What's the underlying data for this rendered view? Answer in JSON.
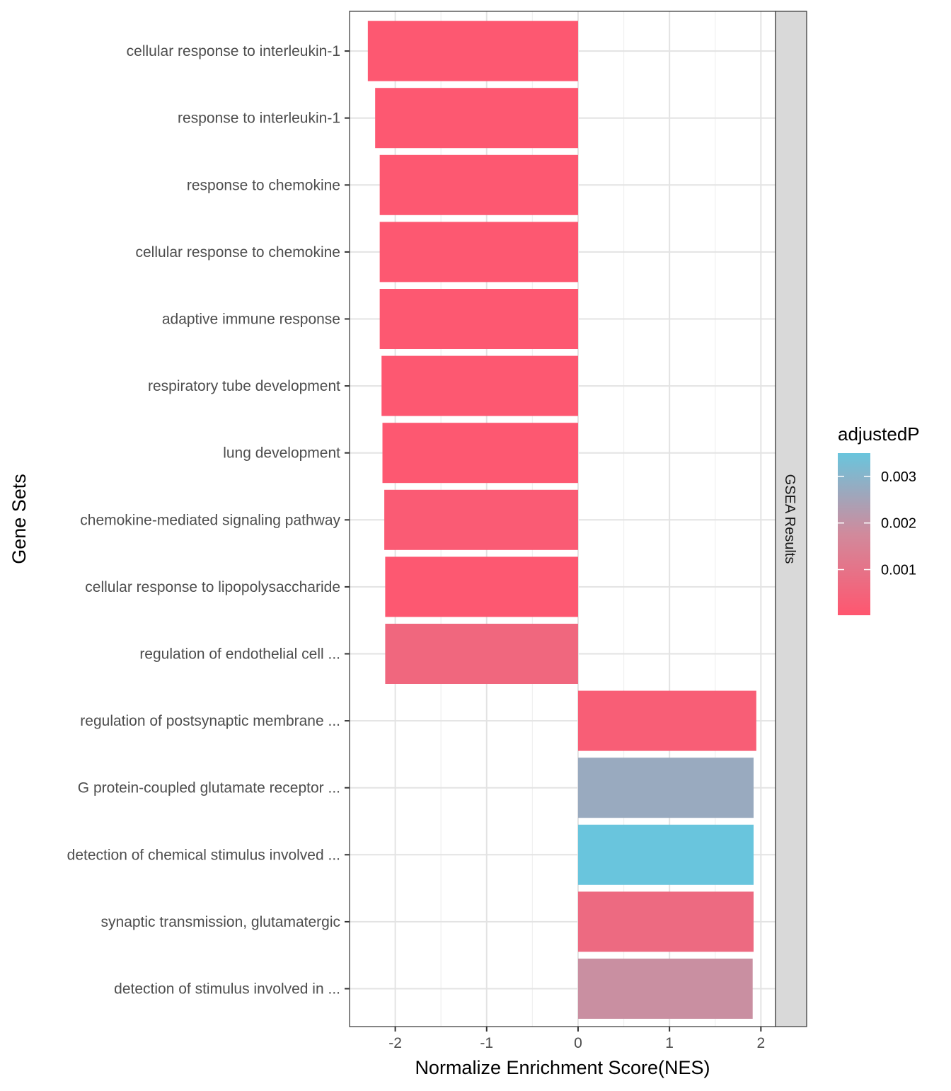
{
  "chart_data": {
    "type": "bar",
    "orientation": "horizontal",
    "xlabel": "Normalize Enrichment Score(NES)",
    "ylabel": "Gene Sets",
    "facet_label": "GSEA Results",
    "xlim": [
      -2.5,
      2.16
    ],
    "x_ticks": [
      -2,
      -1,
      0,
      1,
      2
    ],
    "x_tick_labels": [
      "-2",
      "-1",
      "0",
      "1",
      "2"
    ],
    "grid": true,
    "legend": {
      "title": "adjustedP",
      "position": "right",
      "ticks": [
        0.003,
        0.002,
        0.001
      ],
      "tick_labels": [
        "0.003",
        "0.002",
        "0.001"
      ],
      "range": [
        2e-05,
        0.0035
      ],
      "low_color": "#ff566f",
      "high_color": "#69c5dd"
    },
    "categories": [
      "cellular response to interleukin-1",
      "response to interleukin-1",
      "response to chemokine",
      "cellular response to chemokine",
      "adaptive immune response",
      "respiratory tube development",
      "lung development",
      "chemokine-mediated signaling pathway",
      "cellular response to lipopolysaccharide",
      "regulation of endothelial cell ...",
      "regulation of postsynaptic membrane ...",
      "G protein-coupled glutamate receptor ...",
      "detection of chemical stimulus involved ...",
      "synaptic transmission, glutamatergic",
      "detection of stimulus involved in ..."
    ],
    "values": [
      -2.3,
      -2.22,
      -2.17,
      -2.17,
      -2.17,
      -2.15,
      -2.14,
      -2.12,
      -2.11,
      -2.11,
      1.95,
      1.92,
      1.92,
      1.92,
      1.91
    ],
    "adjustedP": [
      0.0001,
      0.0001,
      0.0001,
      0.0001,
      0.0001,
      0.0001,
      0.0001,
      0.0002,
      0.0001,
      0.0006,
      0.0003,
      0.0027,
      0.0035,
      0.0007,
      0.0019
    ]
  }
}
